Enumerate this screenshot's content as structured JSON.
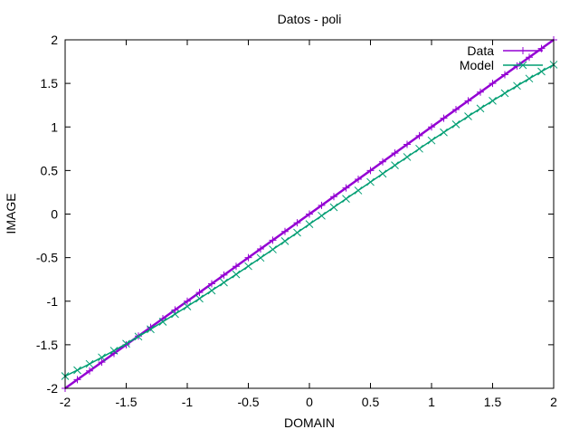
{
  "chart_data": {
    "type": "line",
    "title": "Datos - poli",
    "xlabel": "DOMAIN",
    "ylabel": "IMAGE",
    "xlim": [
      -2,
      2
    ],
    "ylim": [
      -2,
      2
    ],
    "xticks": [
      -2,
      -1.5,
      -1,
      -0.5,
      0,
      0.5,
      1,
      1.5,
      2
    ],
    "yticks": [
      -2,
      -1.5,
      -1,
      -0.5,
      0,
      0.5,
      1,
      1.5,
      2
    ],
    "xtick_labels": [
      "-2",
      "-1.5",
      "-1",
      "-0.5",
      "0",
      "0.5",
      "1",
      "1.5",
      "2"
    ],
    "ytick_labels": [
      "-2",
      "-1.5",
      "-1",
      "-0.5",
      "0",
      "0.5",
      "1",
      "1.5",
      "2"
    ],
    "grid": false,
    "legend_position": "top-right",
    "series": [
      {
        "name": "Data",
        "color": "#9400d3",
        "marker": "plus",
        "x": [
          -2,
          -1.9,
          -1.8,
          -1.7,
          -1.6,
          -1.5,
          -1.4,
          -1.3,
          -1.2,
          -1.1,
          -1,
          -0.9,
          -0.8,
          -0.7,
          -0.6,
          -0.5,
          -0.4,
          -0.3,
          -0.2,
          -0.1,
          0,
          0.1,
          0.2,
          0.3,
          0.4,
          0.5,
          0.6,
          0.7,
          0.8,
          0.9,
          1,
          1.1,
          1.2,
          1.3,
          1.4,
          1.5,
          1.6,
          1.7,
          1.8,
          1.9,
          2
        ],
        "y": [
          -2,
          -1.9,
          -1.8,
          -1.7,
          -1.6,
          -1.5,
          -1.4,
          -1.3,
          -1.2,
          -1.1,
          -1,
          -0.9,
          -0.8,
          -0.7,
          -0.6,
          -0.5,
          -0.4,
          -0.3,
          -0.2,
          -0.1,
          0,
          0.1,
          0.2,
          0.3,
          0.4,
          0.5,
          0.6,
          0.7,
          0.8,
          0.9,
          1,
          1.1,
          1.2,
          1.3,
          1.4,
          1.5,
          1.6,
          1.7,
          1.8,
          1.9,
          2
        ]
      },
      {
        "name": "Model",
        "color": "#009e73",
        "marker": "x",
        "x": [
          -2,
          -1.9,
          -1.8,
          -1.7,
          -1.6,
          -1.5,
          -1.4,
          -1.3,
          -1.2,
          -1.1,
          -1,
          -0.9,
          -0.8,
          -0.7,
          -0.6,
          -0.5,
          -0.4,
          -0.3,
          -0.2,
          -0.1,
          0,
          0.1,
          0.2,
          0.3,
          0.4,
          0.5,
          0.6,
          0.7,
          0.8,
          0.9,
          1,
          1.1,
          1.2,
          1.3,
          1.4,
          1.5,
          1.6,
          1.7,
          1.8,
          1.9,
          2
        ],
        "y": [
          -1.86,
          -1.792,
          -1.72,
          -1.645,
          -1.568,
          -1.488,
          -1.406,
          -1.322,
          -1.236,
          -1.148,
          -1.06,
          -0.97,
          -0.878,
          -0.786,
          -0.692,
          -0.598,
          -0.502,
          -0.406,
          -0.31,
          -0.213,
          -0.116,
          -0.019,
          0.078,
          0.175,
          0.271,
          0.368,
          0.464,
          0.56,
          0.655,
          0.75,
          0.845,
          0.938,
          1.03,
          1.122,
          1.212,
          1.3,
          1.387,
          1.472,
          1.555,
          1.636,
          1.715
        ]
      }
    ]
  }
}
